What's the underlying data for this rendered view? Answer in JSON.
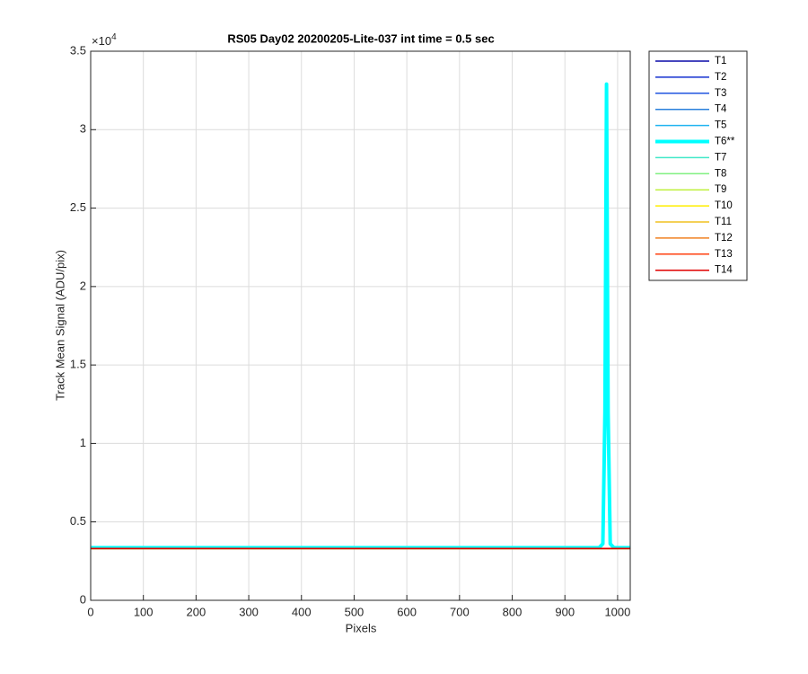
{
  "chart_data": {
    "type": "line",
    "title": "RS05 Day02 20200205-Lite-037 int time = 0.5 sec",
    "xlabel": "Pixels",
    "ylabel": "Track Mean Signal (ADU/pix)",
    "y_multiplier": {
      "base": "×10",
      "exponent": "4"
    },
    "x": [
      1,
      965,
      972,
      976,
      979,
      982,
      986,
      993,
      1024
    ],
    "xlim": [
      0,
      1024
    ],
    "xticks": [
      0,
      100,
      200,
      300,
      400,
      500,
      600,
      700,
      800,
      900,
      1000
    ],
    "ylim": [
      0,
      35000
    ],
    "yticks": [
      {
        "value": 0,
        "label": "0"
      },
      {
        "value": 5000,
        "label": "0.5"
      },
      {
        "value": 10000,
        "label": "1"
      },
      {
        "value": 15000,
        "label": "1.5"
      },
      {
        "value": 20000,
        "label": "2"
      },
      {
        "value": 25000,
        "label": "2.5"
      },
      {
        "value": 30000,
        "label": "3"
      },
      {
        "value": 35000,
        "label": "3.5"
      }
    ],
    "grid": true,
    "legend": "outside-right-top",
    "series": [
      {
        "name": "T1",
        "color": "#0a0aa8",
        "linewidth": 1.5,
        "values": [
          3300,
          3300,
          3300,
          3300,
          3300,
          3300,
          3300,
          3300,
          3300
        ]
      },
      {
        "name": "T2",
        "color": "#1530d0",
        "linewidth": 1.5,
        "values": [
          3300,
          3300,
          3300,
          3300,
          3300,
          3300,
          3300,
          3300,
          3300
        ]
      },
      {
        "name": "T3",
        "color": "#2055e0",
        "linewidth": 1.5,
        "values": [
          3300,
          3300,
          3300,
          3300,
          3300,
          3300,
          3300,
          3300,
          3300
        ]
      },
      {
        "name": "T4",
        "color": "#2a80dc",
        "linewidth": 1.5,
        "values": [
          3300,
          3300,
          3300,
          3300,
          3300,
          3300,
          3300,
          3300,
          3300
        ]
      },
      {
        "name": "T5",
        "color": "#20b4f0",
        "linewidth": 1.5,
        "values": [
          3300,
          3300,
          3300,
          3300,
          3300,
          3300,
          3300,
          3300,
          3300
        ]
      },
      {
        "name": "T6**",
        "color": "#00ffff",
        "linewidth": 4,
        "values": [
          3350,
          3350,
          3600,
          12000,
          32900,
          12000,
          3600,
          3350,
          3350
        ]
      },
      {
        "name": "T7",
        "color": "#40e8c8",
        "linewidth": 1.5,
        "values": [
          3300,
          3300,
          3300,
          3300,
          3300,
          3300,
          3300,
          3300,
          3300
        ]
      },
      {
        "name": "T8",
        "color": "#80f080",
        "linewidth": 1.5,
        "values": [
          3300,
          3300,
          3300,
          3300,
          3300,
          3300,
          3300,
          3300,
          3300
        ]
      },
      {
        "name": "T9",
        "color": "#c0f040",
        "linewidth": 1.5,
        "values": [
          3300,
          3300,
          3300,
          3300,
          3300,
          3300,
          3300,
          3300,
          3300
        ]
      },
      {
        "name": "T10",
        "color": "#ffee00",
        "linewidth": 1.5,
        "values": [
          3300,
          3300,
          3300,
          3300,
          3300,
          3300,
          3300,
          3300,
          3300
        ]
      },
      {
        "name": "T11",
        "color": "#f0c020",
        "linewidth": 1.5,
        "values": [
          3300,
          3300,
          3300,
          3300,
          3300,
          3300,
          3300,
          3300,
          3300
        ]
      },
      {
        "name": "T12",
        "color": "#f08020",
        "linewidth": 1.5,
        "values": [
          3300,
          3300,
          3300,
          3300,
          3300,
          3300,
          3300,
          3300,
          3300
        ]
      },
      {
        "name": "T13",
        "color": "#ff4010",
        "linewidth": 1.5,
        "values": [
          3300,
          3300,
          3300,
          3300,
          3300,
          3300,
          3300,
          3300,
          3300
        ]
      },
      {
        "name": "T14",
        "color": "#e00000",
        "linewidth": 1.5,
        "values": [
          3300,
          3300,
          3300,
          3300,
          3300,
          3300,
          3300,
          3300,
          3300
        ]
      }
    ]
  }
}
